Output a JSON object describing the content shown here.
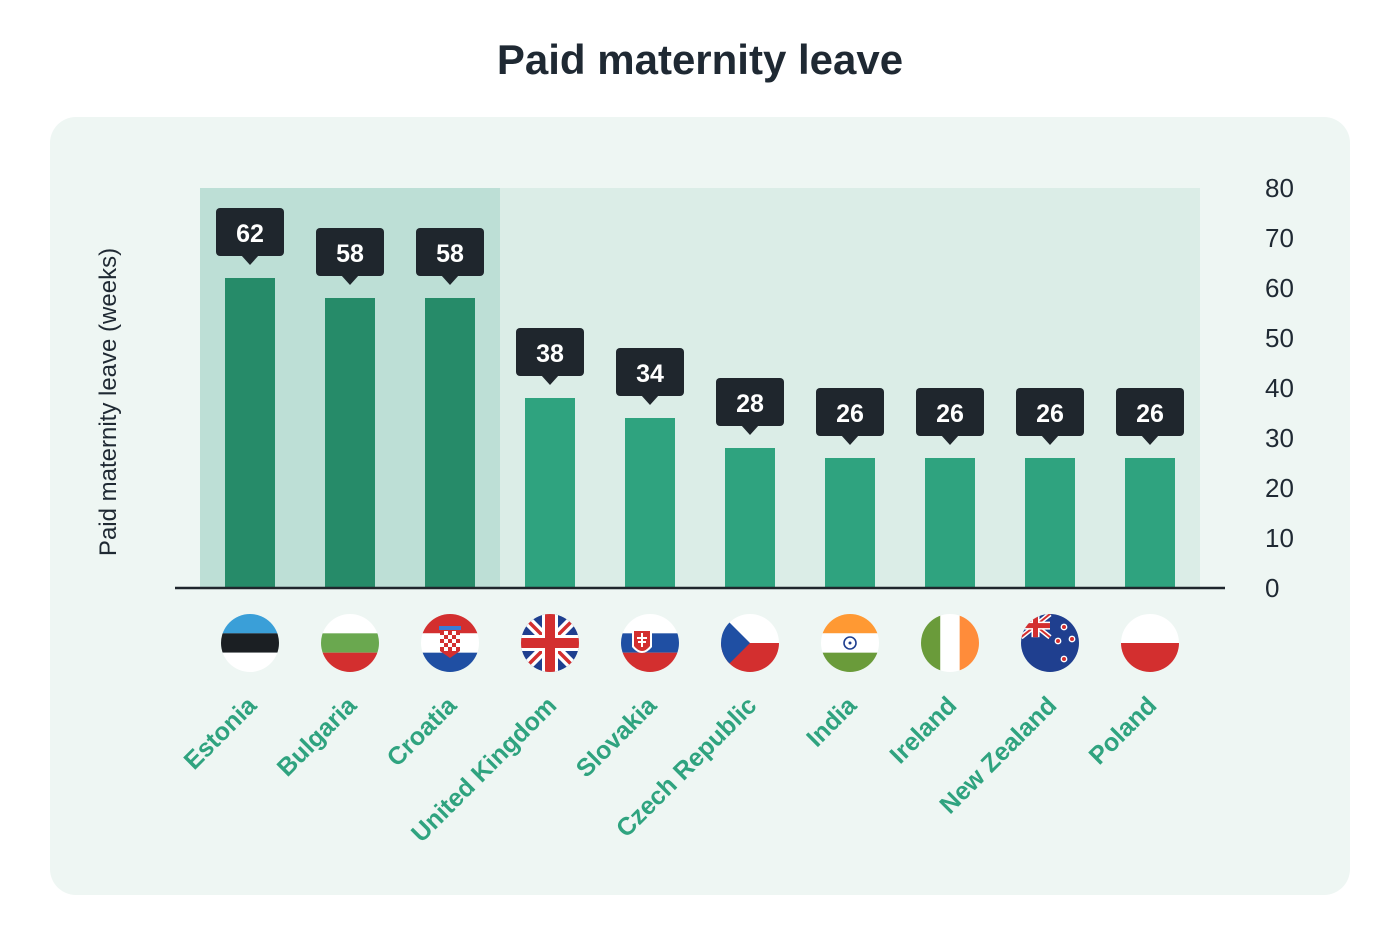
{
  "title": "Paid maternity leave",
  "colors": {
    "panel_bg": "#eef6f3",
    "plot_bg": "#dbede7",
    "highlight_bg": "#bddfd6",
    "bar_highlight": "#268b69",
    "bar": "#2fa37f",
    "callout_bg": "#1f262d",
    "callout_text": "#ffffff",
    "label_text": "#2fa37f",
    "axis_text": "#1f2933"
  },
  "chart_data": {
    "type": "bar",
    "title": "Paid maternity leave",
    "ylabel": "Paid maternity leave (weeks)",
    "xlabel": "",
    "ylim": [
      0,
      80
    ],
    "y_ticks": [
      0,
      10,
      20,
      30,
      40,
      50,
      60,
      70,
      80
    ],
    "y_axis_side": "right",
    "grid": false,
    "highlighted_categories": [
      "Estonia",
      "Bulgaria",
      "Croatia"
    ],
    "categories": [
      "Estonia",
      "Bulgaria",
      "Croatia",
      "United Kingdom",
      "Slovakia",
      "Czech Republic",
      "India",
      "Ireland",
      "New Zealand",
      "Poland"
    ],
    "values": [
      62,
      58,
      58,
      38,
      34,
      28,
      26,
      26,
      26,
      26
    ],
    "value_labels": [
      "62",
      "58",
      "58",
      "38",
      "34",
      "28",
      "26",
      "26",
      "26",
      "26"
    ],
    "flags": [
      "estonia-flag",
      "bulgaria-flag",
      "croatia-flag",
      "united-kingdom-flag",
      "slovakia-flag",
      "czech-republic-flag",
      "india-flag",
      "ireland-flag",
      "new-zealand-flag",
      "poland-flag"
    ]
  }
}
